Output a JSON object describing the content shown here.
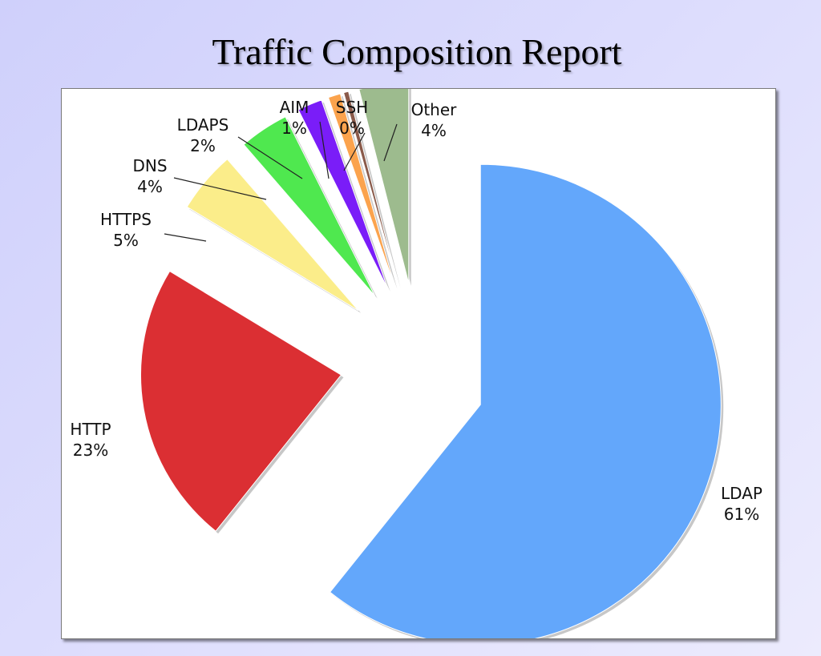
{
  "slide": {
    "title": "Traffic Composition Report"
  },
  "chart_data": {
    "type": "pie",
    "title": "",
    "exploded": true,
    "slices": [
      {
        "label": "LDAP",
        "percent_label": "61%",
        "value": 61,
        "color": "#63a7fb"
      },
      {
        "label": "HTTP",
        "percent_label": "23%",
        "value": 23,
        "color": "#db2f33"
      },
      {
        "label": "HTTPS",
        "percent_label": "5%",
        "value": 5,
        "color": "#fbed8a"
      },
      {
        "label": "DNS",
        "percent_label": "4%",
        "value": 4,
        "color": "#4fe84f"
      },
      {
        "label": "LDAPS",
        "percent_label": "2%",
        "value": 2,
        "color": "#7a1df8"
      },
      {
        "label": "AIM",
        "percent_label": "1%",
        "value": 1,
        "color": "#fba34d"
      },
      {
        "label": "SSH",
        "percent_label": "0%",
        "value": 0.4,
        "color": "#8a5a4a"
      },
      {
        "label": "Other",
        "percent_label": "4%",
        "value": 4,
        "color": "#9dbb8e"
      }
    ]
  }
}
